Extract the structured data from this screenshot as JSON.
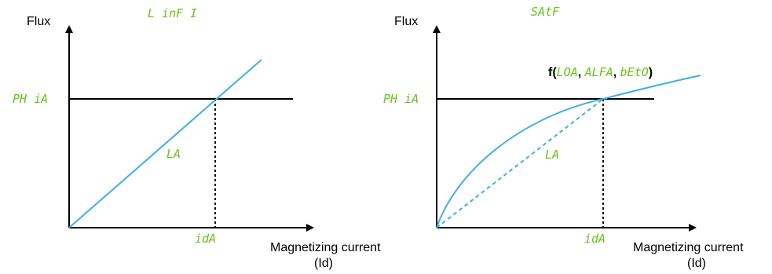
{
  "colors": {
    "curve": "#3fb0e0",
    "code": "#66c21a",
    "axis": "#000000"
  },
  "left": {
    "title": "L inF I",
    "y_axis_label": "Flux",
    "x_axis_label_line1": "Magnetizing current",
    "x_axis_label_line2": "(Id)",
    "y_marker": "PH iA",
    "x_marker": "idA",
    "line_label": "LA"
  },
  "right": {
    "title": "SAtF",
    "y_axis_label": "Flux",
    "x_axis_label_line1": "Magnetizing current",
    "x_axis_label_line2": "(Id)",
    "y_marker": "PH iA",
    "x_marker": "idA",
    "line_label": "LA",
    "func_prefix": "f(",
    "func_arg1": "LOA",
    "func_sep1": ", ",
    "func_arg2": "ALFA",
    "func_sep2": ", ",
    "func_arg3": "bEtO",
    "func_suffix": ")"
  }
}
